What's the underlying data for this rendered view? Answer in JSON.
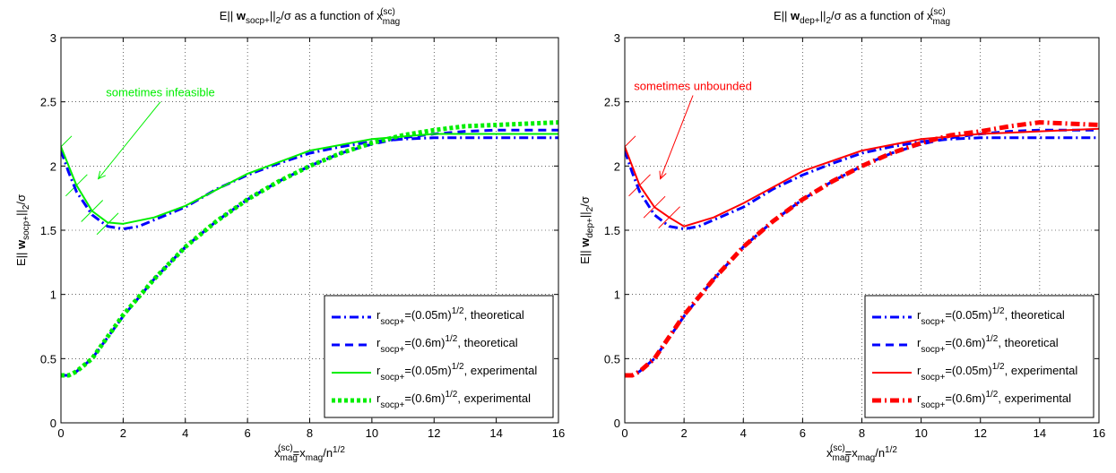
{
  "chart_data": [
    {
      "type": "line",
      "title": {
        "pre": "E|| ",
        "bold": "w",
        "sub": "socp+",
        "post": "||",
        "sub2": "2",
        "post2": "/σ as a function of x",
        "sub3": "mag",
        "sup3": "(sc)"
      },
      "ylabel": {
        "pre": "E|| ",
        "bold": "w",
        "sub": "socp+",
        "post": "||",
        "sub2": "2",
        "post2": "/σ"
      },
      "xlabel": {
        "pre": "x",
        "sub": "mag",
        "sup": "(sc)",
        "mid": "=x",
        "sub2": "mag",
        "post": "/n",
        "sup2": "1/2"
      },
      "xlim": [
        0,
        16
      ],
      "ylim": [
        0,
        3
      ],
      "xticks": [
        0,
        2,
        4,
        6,
        8,
        10,
        12,
        14,
        16
      ],
      "yticks": [
        0,
        0.5,
        1,
        1.5,
        2,
        2.5,
        3
      ],
      "ytick_labels": [
        "0",
        "0.5",
        "1",
        "1.5",
        "2",
        "2.5",
        "3"
      ],
      "grid": true,
      "legend_position": "bottom-right",
      "annotation": {
        "text": "sometimes infeasible",
        "color": "#00ee00",
        "from": [
          3.2,
          2.5
        ],
        "to": [
          1.2,
          1.9
        ]
      },
      "hatch": {
        "color": "#00ee00",
        "points": [
          [
            0,
            2.15
          ],
          [
            0.5,
            1.85
          ],
          [
            1,
            1.65
          ],
          [
            1.5,
            1.55
          ]
        ]
      },
      "series": [
        {
          "legend": {
            "pre": "r",
            "sub": "socp+",
            "mid": "=(0.05m)",
            "sup": "1/2",
            "post": ", theoretical"
          },
          "color": "#0000ff",
          "style": "dashdot",
          "width": 3,
          "x": [
            0,
            0.25,
            0.5,
            1,
            1.5,
            2,
            2.5,
            3,
            4,
            5,
            6,
            7,
            8,
            9,
            10,
            11,
            12,
            13,
            14,
            15,
            16
          ],
          "y": [
            2.12,
            1.95,
            1.8,
            1.62,
            1.53,
            1.51,
            1.53,
            1.58,
            1.68,
            1.82,
            1.93,
            2.02,
            2.1,
            2.15,
            2.19,
            2.21,
            2.22,
            2.22,
            2.22,
            2.22,
            2.22
          ]
        },
        {
          "legend": {
            "pre": "r",
            "sub": "socp+",
            "mid": "=(0.6m)",
            "sup": "1/2",
            "post": ", theoretical"
          },
          "color": "#0000ff",
          "style": "dash",
          "width": 3,
          "x": [
            0,
            0.25,
            0.5,
            1,
            2,
            3,
            4,
            5,
            6,
            7,
            8,
            9,
            10,
            11,
            12,
            13,
            14,
            15,
            16
          ],
          "y": [
            0.37,
            0.37,
            0.4,
            0.5,
            0.83,
            1.12,
            1.37,
            1.57,
            1.74,
            1.88,
            2.0,
            2.1,
            2.17,
            2.22,
            2.25,
            2.27,
            2.28,
            2.28,
            2.28
          ]
        },
        {
          "legend": {
            "pre": "r",
            "sub": "socp+",
            "mid": "=(0.05m)",
            "sup": "1/2",
            "post": ", experimental"
          },
          "color": "#00ee00",
          "style": "solid",
          "width": 2,
          "x": [
            0,
            0.5,
            1,
            1.5,
            2,
            3,
            4,
            6,
            8,
            10,
            12,
            14,
            16
          ],
          "y": [
            2.15,
            1.85,
            1.65,
            1.56,
            1.55,
            1.6,
            1.69,
            1.94,
            2.12,
            2.21,
            2.25,
            2.25,
            2.25
          ]
        },
        {
          "legend": {
            "pre": "r",
            "sub": "socp+",
            "mid": "=(0.6m)",
            "sup": "1/2",
            "post": ", experimental"
          },
          "color": "#00ee00",
          "style": "dotted",
          "width": 5,
          "x": [
            0,
            0.25,
            0.5,
            1,
            2,
            3,
            4,
            5,
            6,
            7,
            8,
            9,
            10,
            11,
            12,
            13,
            14,
            15,
            16
          ],
          "y": [
            0.37,
            0.37,
            0.4,
            0.5,
            0.84,
            1.12,
            1.37,
            1.57,
            1.74,
            1.88,
            2.0,
            2.1,
            2.18,
            2.24,
            2.28,
            2.31,
            2.32,
            2.33,
            2.34
          ]
        }
      ]
    },
    {
      "type": "line",
      "title": {
        "pre": "E|| ",
        "bold": "w",
        "sub": "dep+",
        "post": "||",
        "sub2": "2",
        "post2": "/σ as a function of x",
        "sub3": "mag",
        "sup3": "(sc)"
      },
      "ylabel": {
        "pre": "E|| ",
        "bold": "w",
        "sub": "dep+",
        "post": "||",
        "sub2": "2",
        "post2": "/σ"
      },
      "xlabel": {
        "pre": "x",
        "sub": "mag",
        "sup": "(sc)",
        "mid": "=x",
        "sub2": "mag",
        "post": "/n",
        "sup2": "1/2"
      },
      "xlim": [
        0,
        16
      ],
      "ylim": [
        0,
        3
      ],
      "xticks": [
        0,
        2,
        4,
        6,
        8,
        10,
        12,
        14,
        16
      ],
      "yticks": [
        0,
        0.5,
        1,
        1.5,
        2,
        2.5,
        3
      ],
      "ytick_labels": [
        "0",
        "0.5",
        "1",
        "1.5",
        "2",
        "2.5",
        "3"
      ],
      "grid": true,
      "legend_position": "bottom-right",
      "annotation": {
        "text": "sometimes unbounded",
        "color": "#ff0000",
        "from": [
          2.3,
          2.55
        ],
        "to": [
          1.2,
          1.9
        ]
      },
      "hatch": {
        "color": "#ff0000",
        "points": [
          [
            0,
            2.15
          ],
          [
            0.5,
            1.85
          ],
          [
            1,
            1.68
          ],
          [
            1.5,
            1.6
          ]
        ]
      },
      "series": [
        {
          "legend": {
            "pre": "r",
            "sub": "socp+",
            "mid": "=(0.05m)",
            "sup": "1/2",
            "post": ", theoretical"
          },
          "color": "#0000ff",
          "style": "dashdot",
          "width": 3,
          "x": [
            0,
            0.25,
            0.5,
            1,
            1.5,
            2,
            2.5,
            3,
            4,
            5,
            6,
            7,
            8,
            9,
            10,
            11,
            12,
            13,
            14,
            15,
            16
          ],
          "y": [
            2.12,
            1.95,
            1.8,
            1.62,
            1.53,
            1.51,
            1.53,
            1.58,
            1.68,
            1.82,
            1.93,
            2.02,
            2.1,
            2.15,
            2.19,
            2.21,
            2.22,
            2.22,
            2.22,
            2.22,
            2.22
          ]
        },
        {
          "legend": {
            "pre": "r",
            "sub": "socp+",
            "mid": "=(0.6m)",
            "sup": "1/2",
            "post": ", theoretical"
          },
          "color": "#0000ff",
          "style": "dash",
          "width": 3,
          "x": [
            0,
            0.25,
            0.5,
            1,
            2,
            3,
            4,
            5,
            6,
            7,
            8,
            9,
            10,
            11,
            12,
            13,
            14,
            15,
            16
          ],
          "y": [
            0.37,
            0.37,
            0.4,
            0.5,
            0.83,
            1.12,
            1.37,
            1.57,
            1.74,
            1.88,
            2.0,
            2.1,
            2.17,
            2.22,
            2.25,
            2.27,
            2.28,
            2.28,
            2.28
          ]
        },
        {
          "legend": {
            "pre": "r",
            "sub": "socp+",
            "mid": "=(0.05m)",
            "sup": "1/2",
            "post": ", experimental"
          },
          "color": "#ff0000",
          "style": "solid",
          "width": 2,
          "x": [
            0,
            0.5,
            1,
            1.5,
            2,
            3,
            4,
            6,
            8,
            10,
            12,
            14,
            16
          ],
          "y": [
            2.15,
            1.85,
            1.68,
            1.6,
            1.53,
            1.6,
            1.71,
            1.96,
            2.12,
            2.21,
            2.25,
            2.27,
            2.29
          ]
        },
        {
          "legend": {
            "pre": "r",
            "sub": "socp+",
            "mid": "=(0.6m)",
            "sup": "1/2",
            "post": ", experimental"
          },
          "color": "#ff0000",
          "style": "dashdot",
          "width": 5,
          "x": [
            0,
            0.25,
            0.5,
            1,
            2,
            3,
            4,
            5,
            6,
            7,
            8,
            9,
            10,
            11,
            12,
            13,
            14,
            15,
            16
          ],
          "y": [
            0.37,
            0.37,
            0.4,
            0.5,
            0.84,
            1.12,
            1.37,
            1.57,
            1.74,
            1.88,
            2.0,
            2.1,
            2.18,
            2.24,
            2.27,
            2.31,
            2.34,
            2.33,
            2.32
          ]
        }
      ]
    }
  ]
}
